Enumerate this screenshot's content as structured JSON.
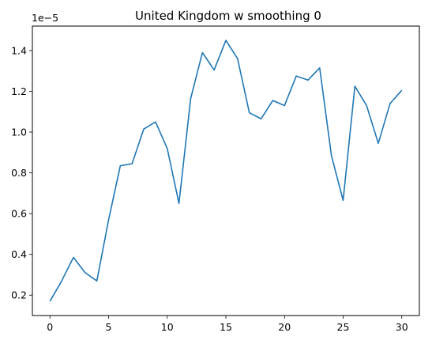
{
  "chart_data": {
    "type": "line",
    "title": "United Kingdom w smoothing 0",
    "xlabel": "",
    "ylabel": "",
    "y_offset_label": "1e−5",
    "xlim": [
      -1.5,
      31.5
    ],
    "ylim": [
      0.1,
      1.52
    ],
    "x_ticks": [
      0,
      5,
      10,
      15,
      20,
      25,
      30
    ],
    "x_tick_labels": [
      "0",
      "5",
      "10",
      "15",
      "20",
      "25",
      "30"
    ],
    "y_ticks": [
      0.2,
      0.4,
      0.6,
      0.8,
      1.0,
      1.2,
      1.4
    ],
    "y_tick_labels": [
      "0.2",
      "0.4",
      "0.6",
      "0.8",
      "1.0",
      "1.2",
      "1.4"
    ],
    "grid": false,
    "series": [
      {
        "color": "#1f77b4",
        "x": [
          0,
          1,
          2,
          3,
          4,
          5,
          6,
          7,
          8,
          9,
          10,
          11,
          12,
          13,
          14,
          15,
          16,
          17,
          18,
          19,
          20,
          21,
          22,
          23,
          24,
          25,
          26,
          27,
          28,
          29,
          30
        ],
        "y": [
          0.17,
          0.27,
          0.385,
          0.31,
          0.27,
          0.57,
          0.835,
          0.845,
          1.015,
          1.05,
          0.92,
          0.65,
          1.165,
          1.39,
          1.305,
          1.45,
          1.36,
          1.095,
          1.065,
          1.155,
          1.13,
          1.275,
          1.255,
          1.315,
          0.885,
          0.665,
          1.225,
          1.13,
          0.945,
          1.14,
          1.205
        ]
      }
    ]
  }
}
